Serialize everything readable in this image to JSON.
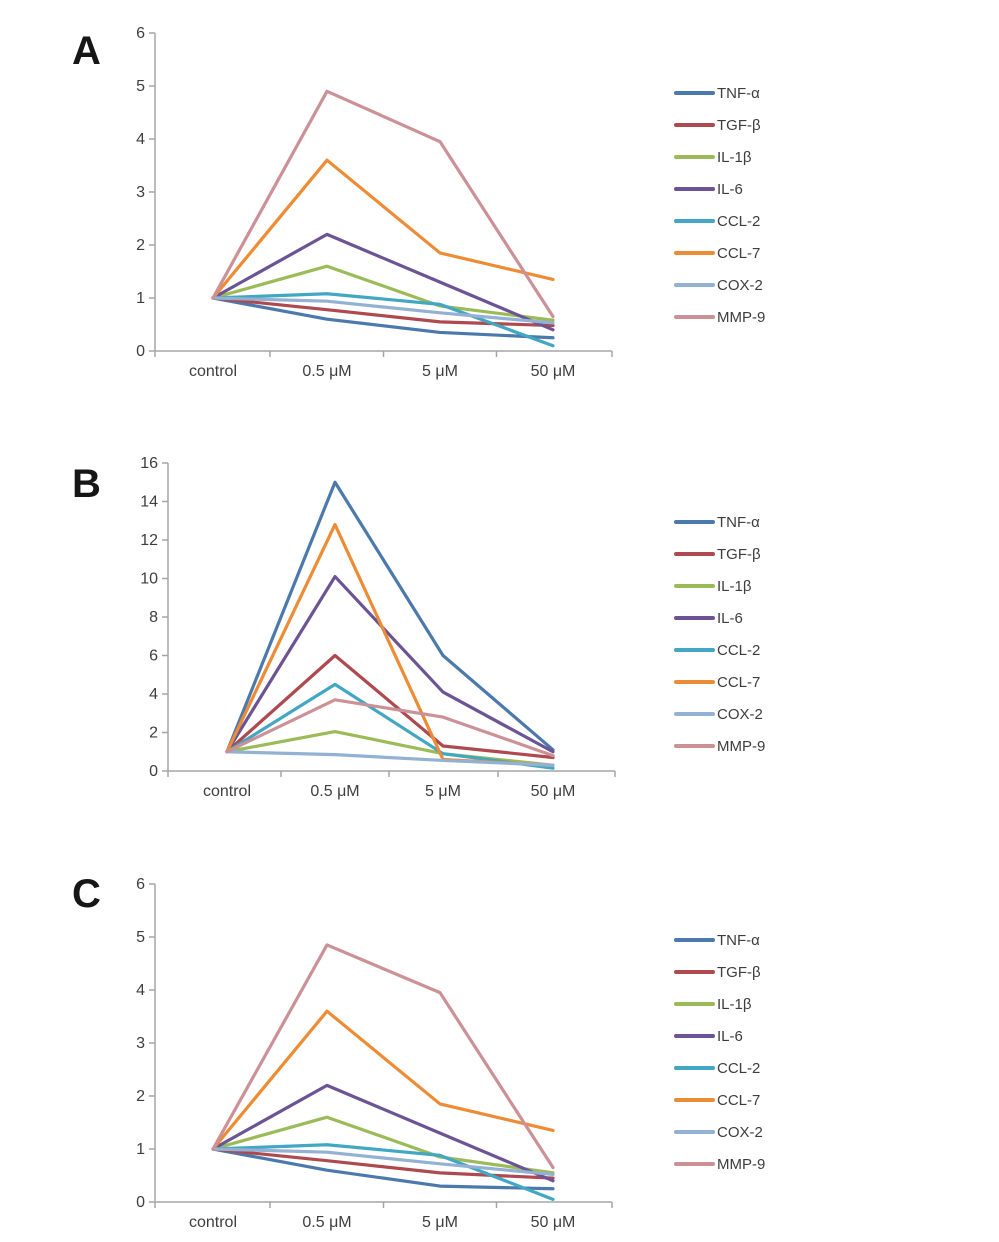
{
  "figure": {
    "background": "#ffffff",
    "text_color": "#3e3e3e",
    "axis_color": "#a6a6a6"
  },
  "chart_data": [
    {
      "panel": "A",
      "type": "line",
      "categories": [
        "control",
        "0.5 μM",
        "5 μM",
        "50 μM"
      ],
      "xlabel": "",
      "ylabel": "",
      "ylim": [
        0,
        6
      ],
      "yticks": [
        0,
        1,
        2,
        3,
        4,
        5,
        6
      ],
      "grid": false,
      "legend_position": "right",
      "series": [
        {
          "name": "TNF-α",
          "color": "#4c79ac",
          "values": [
            1,
            0.6,
            0.35,
            0.25
          ]
        },
        {
          "name": "TGF-β",
          "color": "#ae4a4f",
          "values": [
            1,
            0.78,
            0.55,
            0.48
          ]
        },
        {
          "name": "IL-1β",
          "color": "#9bbb59",
          "values": [
            1,
            1.6,
            0.85,
            0.58
          ]
        },
        {
          "name": "IL-6",
          "color": "#6c5494",
          "values": [
            1,
            2.2,
            1.3,
            0.4
          ]
        },
        {
          "name": "CCL-2",
          "color": "#41a7c2",
          "values": [
            1,
            1.08,
            0.88,
            0.1
          ]
        },
        {
          "name": "CCL-7",
          "color": "#ed8c34",
          "values": [
            1,
            3.6,
            1.85,
            1.35
          ]
        },
        {
          "name": "COX-2",
          "color": "#93b1d3",
          "values": [
            1,
            0.94,
            0.72,
            0.53
          ]
        },
        {
          "name": "MMP-9",
          "color": "#cc9196",
          "values": [
            1,
            4.9,
            3.95,
            0.65
          ]
        }
      ]
    },
    {
      "panel": "B",
      "type": "line",
      "categories": [
        "control",
        "0.5 μM",
        "5 μM",
        "50 μM"
      ],
      "xlabel": "",
      "ylabel": "",
      "ylim": [
        0,
        16
      ],
      "yticks": [
        0,
        2,
        4,
        6,
        8,
        10,
        12,
        14,
        16
      ],
      "grid": false,
      "legend_position": "right",
      "series": [
        {
          "name": "TNF-α",
          "color": "#4c79ac",
          "values": [
            1,
            15,
            6,
            1.1
          ]
        },
        {
          "name": "TGF-β",
          "color": "#ae4a4f",
          "values": [
            1,
            6,
            1.3,
            0.7
          ]
        },
        {
          "name": "IL-1β",
          "color": "#9bbb59",
          "values": [
            1,
            2.05,
            0.9,
            0.3
          ]
        },
        {
          "name": "IL-6",
          "color": "#6c5494",
          "values": [
            1,
            10.1,
            4.1,
            1.0
          ]
        },
        {
          "name": "CCL-2",
          "color": "#41a7c2",
          "values": [
            1,
            4.5,
            0.9,
            0.15
          ]
        },
        {
          "name": "CCL-7",
          "color": "#ed8c34",
          "values": [
            1,
            12.8,
            0.6,
            0.3
          ]
        },
        {
          "name": "COX-2",
          "color": "#93b1d3",
          "values": [
            1,
            0.85,
            0.55,
            0.3
          ]
        },
        {
          "name": "MMP-9",
          "color": "#cc9196",
          "values": [
            1,
            3.7,
            2.8,
            0.8
          ]
        }
      ]
    },
    {
      "panel": "C",
      "type": "line",
      "categories": [
        "control",
        "0.5 μM",
        "5 μM",
        "50 μM"
      ],
      "xlabel": "",
      "ylabel": "",
      "ylim": [
        0,
        6
      ],
      "yticks": [
        0,
        1,
        2,
        3,
        4,
        5,
        6
      ],
      "grid": false,
      "legend_position": "right",
      "series": [
        {
          "name": "TNF-α",
          "color": "#4c79ac",
          "values": [
            1,
            0.6,
            0.3,
            0.25
          ]
        },
        {
          "name": "TGF-β",
          "color": "#ae4a4f",
          "values": [
            1,
            0.78,
            0.55,
            0.45
          ]
        },
        {
          "name": "IL-1β",
          "color": "#9bbb59",
          "values": [
            1,
            1.6,
            0.85,
            0.55
          ]
        },
        {
          "name": "IL-6",
          "color": "#6c5494",
          "values": [
            1,
            2.2,
            1.3,
            0.4
          ]
        },
        {
          "name": "CCL-2",
          "color": "#41a7c2",
          "values": [
            1,
            1.08,
            0.88,
            0.05
          ]
        },
        {
          "name": "CCL-7",
          "color": "#ed8c34",
          "values": [
            1,
            3.6,
            1.85,
            1.35
          ]
        },
        {
          "name": "COX-2",
          "color": "#93b1d3",
          "values": [
            1,
            0.94,
            0.72,
            0.52
          ]
        },
        {
          "name": "MMP-9",
          "color": "#cc9196",
          "values": [
            1,
            4.85,
            3.95,
            0.65
          ]
        }
      ]
    }
  ]
}
